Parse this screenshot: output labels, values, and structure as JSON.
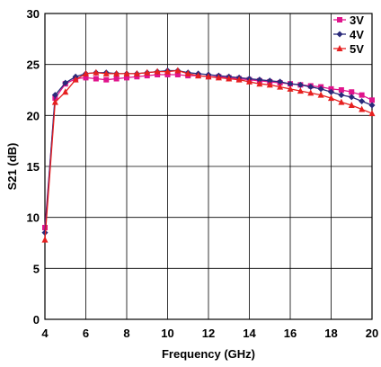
{
  "chart_data": {
    "type": "line",
    "title": "",
    "xlabel": "Frequency (GHz)",
    "ylabel": "S21 (dB)",
    "xlim": [
      4,
      20
    ],
    "ylim": [
      0,
      30
    ],
    "x_ticks": [
      "4",
      "6",
      "8",
      "10",
      "12",
      "14",
      "16",
      "18",
      "20"
    ],
    "y_ticks": [
      "0",
      "5",
      "10",
      "15",
      "20",
      "25",
      "30"
    ],
    "grid": true,
    "legend_position": "top-right",
    "x": [
      4,
      4.5,
      5,
      5.5,
      6,
      6.5,
      7,
      7.5,
      8,
      8.5,
      9,
      9.5,
      10,
      10.5,
      11,
      11.5,
      12,
      12.5,
      13,
      13.5,
      14,
      14.5,
      15,
      15.5,
      16,
      16.5,
      17,
      17.5,
      18,
      18.5,
      19,
      19.5,
      20
    ],
    "series": [
      {
        "name": "3V",
        "color": "#e0148c",
        "marker": "square",
        "values": [
          9.0,
          21.7,
          23.1,
          23.6,
          23.7,
          23.6,
          23.5,
          23.6,
          23.7,
          23.8,
          23.9,
          24.0,
          24.0,
          24.0,
          23.9,
          23.9,
          23.8,
          23.8,
          23.7,
          23.6,
          23.5,
          23.4,
          23.3,
          23.2,
          23.1,
          23.0,
          22.9,
          22.8,
          22.6,
          22.5,
          22.3,
          22.0,
          21.5
        ]
      },
      {
        "name": "4V",
        "color": "#2a2a7a",
        "marker": "diamond",
        "values": [
          8.5,
          22.0,
          23.2,
          23.8,
          24.1,
          24.2,
          24.2,
          24.1,
          24.1,
          24.1,
          24.2,
          24.3,
          24.4,
          24.4,
          24.2,
          24.1,
          24.0,
          23.9,
          23.8,
          23.7,
          23.6,
          23.5,
          23.4,
          23.3,
          23.1,
          23.0,
          22.8,
          22.6,
          22.3,
          22.0,
          21.8,
          21.4,
          21.0
        ]
      },
      {
        "name": "5V",
        "color": "#e62020",
        "marker": "triangle",
        "values": [
          7.8,
          21.3,
          22.3,
          23.5,
          24.1,
          24.2,
          24.1,
          24.1,
          24.1,
          24.1,
          24.2,
          24.3,
          24.3,
          24.4,
          24.1,
          23.9,
          23.8,
          23.7,
          23.6,
          23.5,
          23.3,
          23.1,
          23.0,
          22.8,
          22.6,
          22.4,
          22.2,
          22.0,
          21.7,
          21.3,
          21.0,
          20.6,
          20.2
        ]
      }
    ]
  }
}
